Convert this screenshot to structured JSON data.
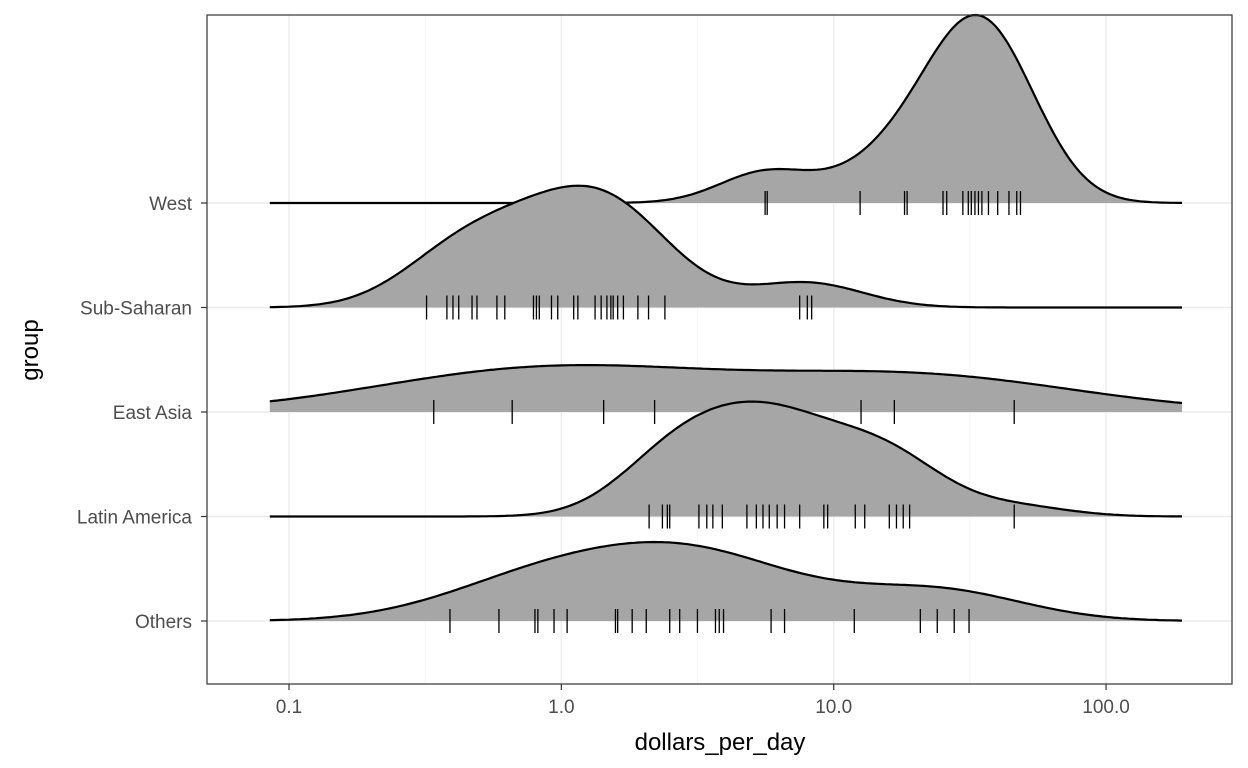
{
  "chart_data": {
    "type": "ridgeline",
    "xlabel": "dollars_per_day",
    "ylabel": "group",
    "x_scale": "log10",
    "xlim": [
      0.05,
      290
    ],
    "x_ticks": [
      {
        "value": 0.1,
        "label": "0.1"
      },
      {
        "value": 1,
        "label": "1.0"
      },
      {
        "value": 10,
        "label": "10.0"
      },
      {
        "value": 100,
        "label": "100.0"
      }
    ],
    "grid": true,
    "density_range": [
      0.085,
      190
    ],
    "fill_color": "#a6a6a6",
    "line_color": "#000000",
    "groups": [
      {
        "name": "Others",
        "rugs": [
          0.39,
          0.59,
          0.8,
          0.82,
          0.94,
          1.05,
          1.58,
          1.61,
          1.82,
          2.05,
          2.5,
          2.72,
          3.16,
          3.68,
          3.8,
          3.94,
          5.89,
          6.6,
          11.9,
          20.8,
          24.0,
          27.7,
          31.4
        ]
      },
      {
        "name": "Latin America",
        "rugs": [
          2.1,
          2.35,
          2.45,
          2.5,
          3.2,
          3.42,
          3.6,
          3.9,
          4.8,
          5.2,
          5.5,
          5.8,
          6.2,
          6.6,
          7.5,
          9.2,
          9.5,
          12.0,
          13.0,
          16.0,
          17.0,
          18.0,
          19.0,
          46.0
        ]
      },
      {
        "name": "East Asia",
        "rugs": [
          0.34,
          0.66,
          1.43,
          2.2,
          12.6,
          16.7,
          46.0
        ]
      },
      {
        "name": "Sub-Saharan",
        "rugs": [
          0.32,
          0.38,
          0.4,
          0.42,
          0.47,
          0.49,
          0.58,
          0.62,
          0.79,
          0.81,
          0.83,
          0.92,
          0.97,
          1.11,
          1.15,
          1.33,
          1.4,
          1.47,
          1.52,
          1.55,
          1.61,
          1.69,
          1.91,
          2.09,
          2.4,
          7.5,
          8.0,
          8.3
        ]
      },
      {
        "name": "West",
        "rugs": [
          5.6,
          5.7,
          12.5,
          18.2,
          18.6,
          25.2,
          26.0,
          29.8,
          31.2,
          32.0,
          33.0,
          34.0,
          35.0,
          37.0,
          40.0,
          44.0,
          47.0,
          48.5
        ]
      }
    ]
  }
}
